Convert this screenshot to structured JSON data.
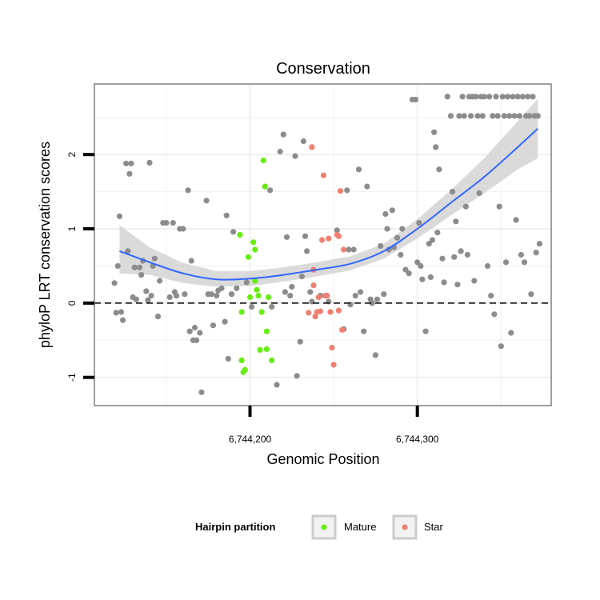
{
  "chart_data": {
    "type": "scatter",
    "title": "Conservation",
    "xlabel": "Genomic Position",
    "ylabel": "phyloP LRT conservation scores",
    "xlim": [
      6744107,
      6744380
    ],
    "ylim": [
      -1.38,
      2.95
    ],
    "x_ticks": [
      {
        "value": 6744200,
        "label": "6,744,200"
      },
      {
        "value": 6744300,
        "label": "6,744,300"
      }
    ],
    "y_ticks": [
      {
        "value": -1,
        "label": "-1"
      },
      {
        "value": 0,
        "label": "0"
      },
      {
        "value": 1,
        "label": "1"
      },
      {
        "value": 2,
        "label": "2"
      }
    ],
    "grid": true,
    "reference_line": {
      "y": 0,
      "style": "dashed"
    },
    "legend": {
      "title": "Hairpin partition",
      "position": "bottom",
      "entries": [
        {
          "label": "Mature",
          "color": "#66ee11"
        },
        {
          "label": "Star",
          "color": "#f07f71"
        }
      ]
    },
    "colors": {
      "other": "#8c8c8c",
      "mature": "#66ee11",
      "star": "#f07f71",
      "smooth_line": "#3366ff",
      "ribbon": "#d3d3d3"
    },
    "series": [
      {
        "name": "Mature",
        "points": [
          [
            6744194,
            0.92
          ],
          [
            6744195,
            -0.12
          ],
          [
            6744195,
            -0.77
          ],
          [
            6744196,
            -0.93
          ],
          [
            6744197,
            -0.9
          ],
          [
            6744199,
            0.62
          ],
          [
            6744200,
            0.08
          ],
          [
            6744202,
            0.82
          ],
          [
            6744203,
            0.72
          ],
          [
            6744203,
            0.3
          ],
          [
            6744204,
            0.18
          ],
          [
            6744205,
            0.1
          ],
          [
            6744206,
            -0.63
          ],
          [
            6744207,
            -0.12
          ],
          [
            6744208,
            1.92
          ],
          [
            6744209,
            1.57
          ],
          [
            6744210,
            -0.38
          ],
          [
            6744210,
            -0.62
          ],
          [
            6744211,
            0.08
          ],
          [
            6744213,
            -0.77
          ]
        ]
      },
      {
        "name": "Star",
        "points": [
          [
            6744235,
            -0.13
          ],
          [
            6744237,
            2.1
          ],
          [
            6744238,
            0.45
          ],
          [
            6744238,
            0.24
          ],
          [
            6744239,
            -0.18
          ],
          [
            6744240,
            -0.12
          ],
          [
            6744241,
            0.08
          ],
          [
            6744242,
            -0.11
          ],
          [
            6744244,
            1.72
          ],
          [
            6744243,
            0.85
          ],
          [
            6744245,
            0.1
          ],
          [
            6744246,
            0.1
          ],
          [
            6744247,
            0.87
          ],
          [
            6744248,
            -0.12
          ],
          [
            6744249,
            -0.6
          ],
          [
            6744250,
            -0.83
          ],
          [
            6744252,
            0.92
          ],
          [
            6744253,
            0.9
          ],
          [
            6744253,
            -0.1
          ],
          [
            6744254,
            1.51
          ],
          [
            6744255,
            -0.36
          ],
          [
            6744256,
            0.72
          ]
        ]
      },
      {
        "name": "Other",
        "points": [
          [
            6744119,
            0.27
          ],
          [
            6744120,
            -0.13
          ],
          [
            6744121,
            0.5
          ],
          [
            6744122,
            1.17
          ],
          [
            6744123,
            -0.12
          ],
          [
            6744124,
            -0.23
          ],
          [
            6744126,
            1.88
          ],
          [
            6744127,
            0.7
          ],
          [
            6744128,
            1.74
          ],
          [
            6744129,
            1.88
          ],
          [
            6744130,
            0.08
          ],
          [
            6744131,
            0.48
          ],
          [
            6744132,
            0.05
          ],
          [
            6744134,
            0.48
          ],
          [
            6744135,
            0.38
          ],
          [
            6744136,
            0.57
          ],
          [
            6744138,
            0.16
          ],
          [
            6744139,
            0.04
          ],
          [
            6744140,
            1.89
          ],
          [
            6744141,
            0.1
          ],
          [
            6744142,
            0.5
          ],
          [
            6744143,
            0.6
          ],
          [
            6744145,
            -0.18
          ],
          [
            6744146,
            0.3
          ],
          [
            6744148,
            1.08
          ],
          [
            6744150,
            1.08
          ],
          [
            6744152,
            0.08
          ],
          [
            6744154,
            1.08
          ],
          [
            6744155,
            0.15
          ],
          [
            6744156,
            0.1
          ],
          [
            6744158,
            1.0
          ],
          [
            6744160,
            1.0
          ],
          [
            6744161,
            0.12
          ],
          [
            6744163,
            1.52
          ],
          [
            6744164,
            -0.38
          ],
          [
            6744165,
            0.57
          ],
          [
            6744166,
            -0.5
          ],
          [
            6744167,
            -0.33
          ],
          [
            6744168,
            -0.5
          ],
          [
            6744170,
            -0.4
          ],
          [
            6744171,
            -1.2
          ],
          [
            6744174,
            1.38
          ],
          [
            6744175,
            0.12
          ],
          [
            6744177,
            0.12
          ],
          [
            6744178,
            -0.3
          ],
          [
            6744180,
            0.1
          ],
          [
            6744181,
            0.17
          ],
          [
            6744183,
            0.2
          ],
          [
            6744185,
            -0.25
          ],
          [
            6744186,
            1.18
          ],
          [
            6744187,
            -0.75
          ],
          [
            6744189,
            0.12
          ],
          [
            6744190,
            0.96
          ],
          [
            6744192,
            0.2
          ],
          [
            6744198,
            0.28
          ],
          [
            6744201,
            -0.05
          ],
          [
            6744212,
            1.52
          ],
          [
            6744213,
            -0.05
          ],
          [
            6744216,
            -1.1
          ],
          [
            6744218,
            2.04
          ],
          [
            6744220,
            2.27
          ],
          [
            6744221,
            0.15
          ],
          [
            6744222,
            0.89
          ],
          [
            6744224,
            0.1
          ],
          [
            6744225,
            0.22
          ],
          [
            6744227,
            1.98
          ],
          [
            6744228,
            -0.98
          ],
          [
            6744230,
            -0.52
          ],
          [
            6744231,
            0.36
          ],
          [
            6744232,
            2.18
          ],
          [
            6744233,
            0.9
          ],
          [
            6744234,
            0.7
          ],
          [
            6744236,
            0.15
          ],
          [
            6744237,
            0.02
          ],
          [
            6744242,
            0.1
          ],
          [
            6744247,
            0.02
          ],
          [
            6744252,
            0.98
          ],
          [
            6744256,
            -0.35
          ],
          [
            6744258,
            1.52
          ],
          [
            6744259,
            0.72
          ],
          [
            6744260,
            -0.02
          ],
          [
            6744262,
            0.72
          ],
          [
            6744263,
            0.1
          ],
          [
            6744265,
            1.8
          ],
          [
            6744266,
            0.15
          ],
          [
            6744268,
            -0.38
          ],
          [
            6744270,
            1.57
          ],
          [
            6744272,
            0.05
          ],
          [
            6744273,
            0.0
          ],
          [
            6744275,
            -0.7
          ],
          [
            6744276,
            0.05
          ],
          [
            6744278,
            0.77
          ],
          [
            6744280,
            0.12
          ],
          [
            6744281,
            1.2
          ],
          [
            6744282,
            1.0
          ],
          [
            6744283,
            0.72
          ],
          [
            6744285,
            1.25
          ],
          [
            6744286,
            0.75
          ],
          [
            6744288,
            0.88
          ],
          [
            6744290,
            0.65
          ],
          [
            6744291,
            1.0
          ],
          [
            6744293,
            0.45
          ],
          [
            6744295,
            0.4
          ],
          [
            6744297,
            2.74
          ],
          [
            6744299,
            2.74
          ],
          [
            6744300,
            0.55
          ],
          [
            6744301,
            1.08
          ],
          [
            6744302,
            0.5
          ],
          [
            6744303,
            0.32
          ],
          [
            6744305,
            -0.38
          ],
          [
            6744307,
            0.8
          ],
          [
            6744308,
            0.35
          ],
          [
            6744309,
            0.85
          ],
          [
            6744310,
            2.3
          ],
          [
            6744311,
            2.1
          ],
          [
            6744312,
            0.95
          ],
          [
            6744313,
            1.8
          ],
          [
            6744315,
            0.6
          ],
          [
            6744316,
            0.28
          ],
          [
            6744318,
            2.78
          ],
          [
            6744320,
            2.52
          ],
          [
            6744321,
            1.5
          ],
          [
            6744322,
            0.62
          ],
          [
            6744323,
            1.1
          ],
          [
            6744324,
            0.25
          ],
          [
            6744325,
            2.52
          ],
          [
            6744326,
            0.7
          ],
          [
            6744327,
            2.78
          ],
          [
            6744328,
            2.52
          ],
          [
            6744329,
            1.3
          ],
          [
            6744330,
            0.65
          ],
          [
            6744331,
            2.78
          ],
          [
            6744332,
            2.52
          ],
          [
            6744333,
            2.78
          ],
          [
            6744334,
            0.3
          ],
          [
            6744335,
            2.78
          ],
          [
            6744336,
            2.52
          ],
          [
            6744337,
            1.48
          ],
          [
            6744338,
            2.78
          ],
          [
            6744339,
            2.52
          ],
          [
            6744340,
            2.78
          ],
          [
            6744342,
            0.5
          ],
          [
            6744343,
            2.78
          ],
          [
            6744344,
            0.1
          ],
          [
            6744345,
            2.52
          ],
          [
            6744346,
            -0.15
          ],
          [
            6744347,
            2.78
          ],
          [
            6744348,
            2.52
          ],
          [
            6744349,
            1.3
          ],
          [
            6744350,
            -0.58
          ],
          [
            6744351,
            2.78
          ],
          [
            6744352,
            2.52
          ],
          [
            6744353,
            0.55
          ],
          [
            6744354,
            2.78
          ],
          [
            6744355,
            2.52
          ],
          [
            6744356,
            -0.4
          ],
          [
            6744357,
            2.78
          ],
          [
            6744358,
            2.52
          ],
          [
            6744359,
            1.12
          ],
          [
            6744360,
            2.78
          ],
          [
            6744361,
            2.52
          ],
          [
            6744362,
            0.65
          ],
          [
            6744363,
            2.78
          ],
          [
            6744364,
            0.55
          ],
          [
            6744365,
            2.52
          ],
          [
            6744366,
            2.78
          ],
          [
            6744367,
            2.52
          ],
          [
            6744368,
            0.12
          ],
          [
            6744369,
            2.78
          ],
          [
            6744370,
            2.52
          ],
          [
            6744371,
            0.68
          ],
          [
            6744372,
            2.52
          ],
          [
            6744373,
            0.8
          ]
        ]
      }
    ],
    "smooth": {
      "x": [
        6744122,
        6744140,
        6744160,
        6744180,
        6744200,
        6744220,
        6744240,
        6744260,
        6744280,
        6744300,
        6744320,
        6744340,
        6744360,
        6744372
      ],
      "y": [
        0.7,
        0.55,
        0.4,
        0.32,
        0.33,
        0.38,
        0.45,
        0.53,
        0.7,
        1.0,
        1.35,
        1.7,
        2.1,
        2.35
      ],
      "lower": [
        0.4,
        0.38,
        0.27,
        0.22,
        0.23,
        0.29,
        0.36,
        0.44,
        0.6,
        0.87,
        1.18,
        1.48,
        1.8,
        1.95
      ],
      "upper": [
        1.05,
        0.75,
        0.54,
        0.43,
        0.43,
        0.48,
        0.55,
        0.63,
        0.8,
        1.13,
        1.52,
        1.95,
        2.45,
        2.75
      ]
    }
  }
}
